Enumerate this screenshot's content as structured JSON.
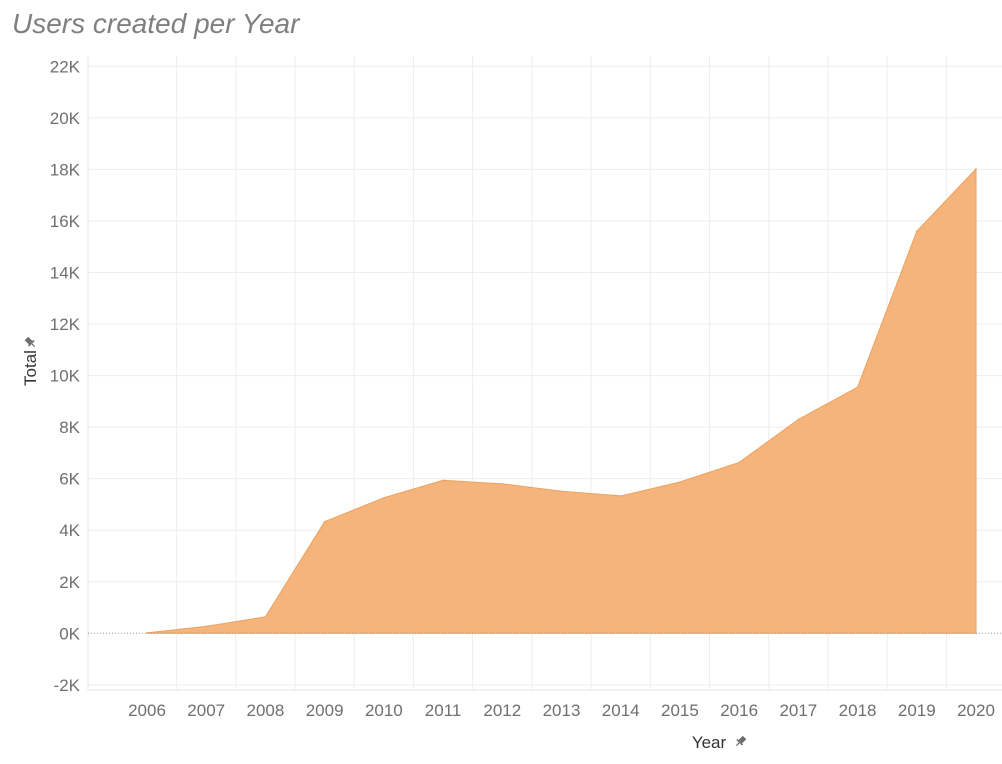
{
  "chart_data": {
    "type": "area",
    "title": "Users created per Year",
    "xlabel": "Year",
    "ylabel": "Total",
    "x": [
      "2006",
      "2007",
      "2008",
      "2009",
      "2010",
      "2011",
      "2012",
      "2013",
      "2014",
      "2015",
      "2016",
      "2017",
      "2018",
      "2019",
      "2020"
    ],
    "values": [
      20,
      270,
      640,
      4330,
      5260,
      5940,
      5800,
      5510,
      5330,
      5870,
      6630,
      8300,
      9550,
      15600,
      18020
    ],
    "ylim": [
      -2200,
      22400
    ],
    "yticks": [
      -2000,
      0,
      2000,
      4000,
      6000,
      8000,
      10000,
      12000,
      14000,
      16000,
      18000,
      20000,
      22000
    ],
    "ytick_labels": [
      "-2K",
      "0K",
      "2K",
      "4K",
      "6K",
      "8K",
      "10K",
      "12K",
      "14K",
      "16K",
      "18K",
      "20K",
      "22K"
    ],
    "grid": true,
    "legend": "none",
    "colors": {
      "area_fill": "#f4b47b",
      "area_stroke": "#eda25f",
      "grid": "#eeeeee",
      "zero_line": "#9a9a9a"
    },
    "axis_icons": {
      "xlabel_icon": "pin-icon",
      "ylabel_icon": "pin-icon"
    }
  }
}
